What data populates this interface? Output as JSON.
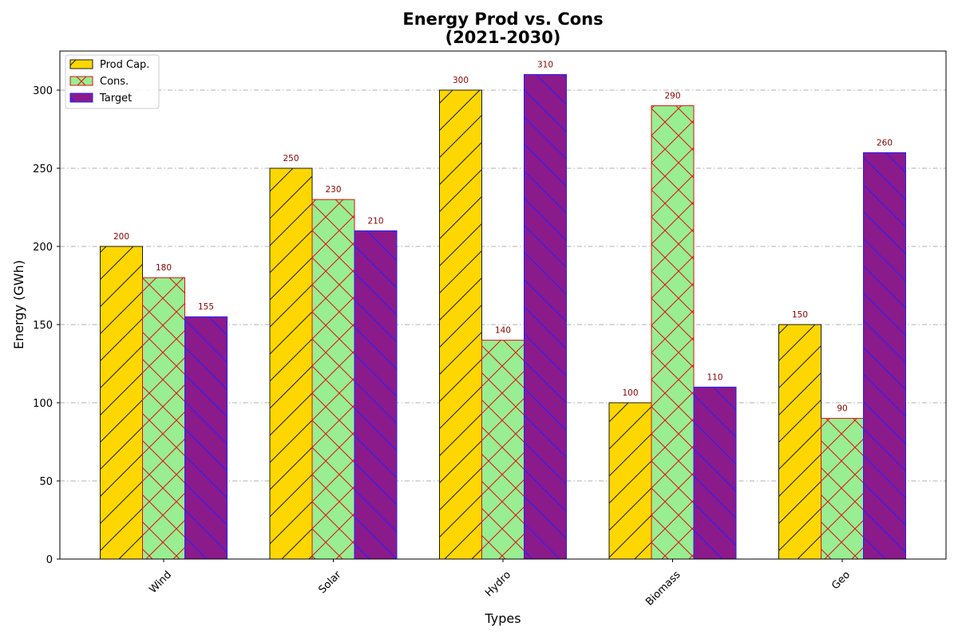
{
  "chart_data": {
    "type": "bar",
    "title_line1": "Energy Prod vs. Cons",
    "title_line2": "(2021-2030)",
    "xlabel": "Types",
    "ylabel": "Energy (GWh)",
    "categories": [
      "Wind",
      "Solar",
      "Hydro",
      "Biomass",
      "Geo"
    ],
    "ylim": [
      0,
      325
    ],
    "yticks": [
      0,
      50,
      100,
      150,
      200,
      250,
      300
    ],
    "grid": "horizontal dash-dot",
    "legend_position": "top-left",
    "series": [
      {
        "name": "Prod Cap.",
        "values": [
          200,
          250,
          300,
          100,
          150
        ],
        "fill": "#ffd700",
        "edge": "#1a1a1a",
        "hatch": "/"
      },
      {
        "name": "Cons.",
        "values": [
          180,
          230,
          140,
          290,
          90
        ],
        "fill": "#98ee90",
        "edge": "#dd1111",
        "hatch": "x"
      },
      {
        "name": "Target",
        "values": [
          155,
          210,
          310,
          110,
          260
        ],
        "fill": "#8b1a8b",
        "edge": "#2222ff",
        "hatch": "\\"
      }
    ],
    "data_label_color": "#8b0000"
  }
}
